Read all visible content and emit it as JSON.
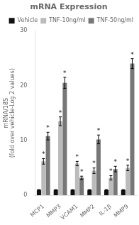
{
  "chart_data": {
    "type": "bar",
    "title": "mRNA Expression",
    "ylabel": "mRNA/18S\n(fold over vehicle-Log 2 values)",
    "categories": [
      "MCP1",
      "MMP3",
      "VCAM1",
      "MMP2",
      "IL-1β",
      "MMP9"
    ],
    "series": [
      {
        "name": "Vehicle",
        "color": "#111111",
        "values": [
          1.0,
          1.0,
          1.0,
          1.0,
          1.0,
          1.0
        ],
        "errors": [
          0.06,
          0.06,
          0.06,
          0.06,
          0.06,
          0.06
        ]
      },
      {
        "name": "TNF-10ng/ml",
        "color": "#bbbbbb",
        "values": [
          6.2,
          13.5,
          5.8,
          4.5,
          3.2,
          5.0
        ],
        "errors": [
          0.5,
          0.8,
          0.4,
          0.5,
          0.4,
          0.5
        ],
        "annotation": "*"
      },
      {
        "name": "TNF-50ng/ml",
        "color": "#777777",
        "values": [
          10.8,
          20.5,
          3.2,
          10.2,
          4.8,
          24.0
        ],
        "errors": [
          0.7,
          1.0,
          0.3,
          0.8,
          0.5,
          0.9
        ],
        "annotation": "*"
      }
    ],
    "ylim": [
      0,
      30
    ],
    "yticks": [
      0,
      10,
      20,
      30
    ],
    "grid": false,
    "legend": "upper right"
  }
}
